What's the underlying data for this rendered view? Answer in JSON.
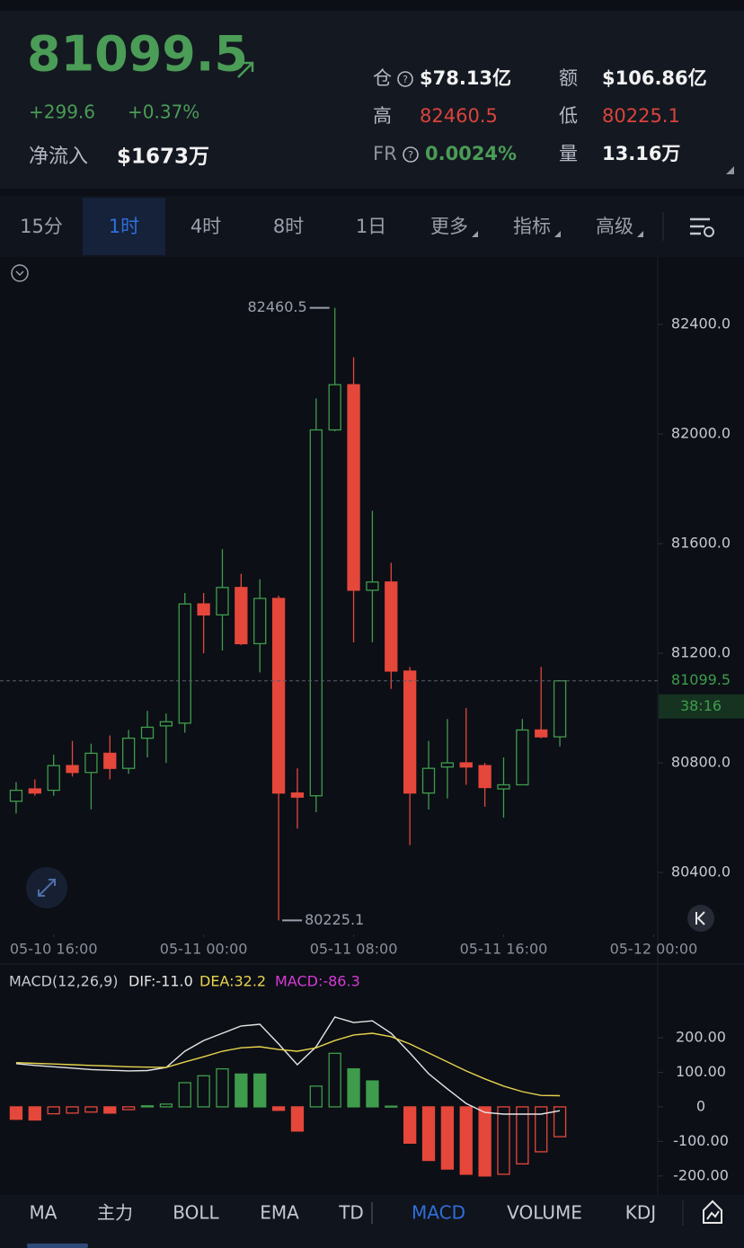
{
  "header": {
    "price": "81099.5",
    "change": "+299.6",
    "change_pct": "+0.37%",
    "net_inflow_label": "净流入",
    "net_inflow": "$1673万",
    "stats": [
      {
        "label": "仓",
        "value": "$78.13亿"
      },
      {
        "label": "额",
        "value": "$106.86亿"
      },
      {
        "label": "高",
        "value": "82460.5"
      },
      {
        "label": "低",
        "value": "80225.1"
      },
      {
        "label": "FR",
        "value": "0.0024%"
      },
      {
        "label": "量",
        "value": "13.16万"
      }
    ]
  },
  "interval_tabs": [
    "15分",
    "1时",
    "4时",
    "8时",
    "1日",
    "更多",
    "指标",
    "高级"
  ],
  "indicator_tabs": [
    "MA",
    "主力",
    "BOLL",
    "EMA",
    "TD",
    "MACD",
    "VOLUME",
    "KDJ"
  ],
  "chart_data": [
    {
      "type": "candlestick",
      "up_color": "#3f9c4c",
      "down_color": "#e5473b",
      "open": [
        80660,
        80705,
        80700,
        80790,
        80765,
        80835,
        80780,
        80890,
        80935,
        80945,
        81380,
        81340,
        81440,
        81235,
        81400,
        80690,
        80680,
        82015,
        82180,
        81430,
        81460,
        81135,
        80690,
        80785,
        80800,
        80790,
        80705,
        80720,
        80920,
        80895
      ],
      "high": [
        80730,
        80740,
        80830,
        80880,
        80870,
        80900,
        80920,
        80990,
        80980,
        81420,
        81420,
        81580,
        81490,
        81470,
        81410,
        80780,
        82130,
        82460.5,
        82280,
        81720,
        81530,
        81150,
        80880,
        80960,
        81000,
        80800,
        80820,
        80960,
        81150,
        81100
      ],
      "low": [
        80615,
        80680,
        80680,
        80750,
        80630,
        80740,
        80760,
        80820,
        80800,
        80910,
        81200,
        81210,
        81230,
        81130,
        80225.1,
        80560,
        80620,
        82010,
        81240,
        81240,
        81070,
        80500,
        80630,
        80670,
        80720,
        80640,
        80600,
        80720,
        80890,
        80860
      ],
      "close": [
        80700,
        80690,
        80790,
        80765,
        80835,
        80780,
        80890,
        80930,
        80950,
        81380,
        81340,
        81440,
        81235,
        81400,
        80690,
        80675,
        82015,
        82180,
        81430,
        81460,
        81135,
        80690,
        80780,
        80800,
        80785,
        80710,
        80720,
        80920,
        80895,
        81099.5
      ],
      "xlim": [
        -0.86,
        34.22
      ],
      "xticks": [
        {
          "value": 2,
          "label": "05-10 16:00"
        },
        {
          "value": 10,
          "label": "05-11 00:00"
        },
        {
          "value": 18,
          "label": "05-11 08:00"
        },
        {
          "value": 26,
          "label": "05-11 16:00"
        },
        {
          "value": 34,
          "label": "05-12 00:00"
        }
      ],
      "ylim": [
        80174,
        82633
      ],
      "yticks": [
        {
          "value": 80400,
          "label": "80400.0"
        },
        {
          "value": 80800,
          "label": "80800.0"
        },
        {
          "value": 81200,
          "label": "81200.0"
        },
        {
          "value": 81600,
          "label": "81600.0"
        },
        {
          "value": 82000,
          "label": "82000.0"
        },
        {
          "value": 82400,
          "label": "82400.0"
        }
      ],
      "annotations": [
        "82460.5",
        "80225.1"
      ],
      "price_tag": "81099.5",
      "countdown": "38:16"
    },
    {
      "type": "macd",
      "title": "MACD(12,26,9)",
      "ylim": [
        -242,
        330
      ],
      "yticks": [
        {
          "value": -200,
          "label": "-200.00"
        },
        {
          "value": -100,
          "label": "-100.00"
        },
        0,
        {
          "value": 100,
          "label": "100.00"
        },
        {
          "value": 200,
          "label": "200.00"
        }
      ],
      "series": [
        {
          "name": "DIF:-11.0",
          "color": "#e6e6e6",
          "kind": "line",
          "values": [
            125,
            120,
            116,
            112,
            108,
            106,
            104,
            105,
            114,
            161,
            192,
            213,
            234,
            239,
            182,
            122,
            174,
            260,
            244,
            249,
            213,
            156,
            96,
            52,
            10,
            -16,
            -21,
            -21,
            -21,
            -11.0
          ]
        },
        {
          "name": "DEA:32.2",
          "color": "#e8d44d",
          "kind": "line",
          "values": [
            128,
            126,
            124,
            122,
            120,
            118,
            116,
            115,
            114,
            130,
            145,
            161,
            171,
            174,
            166,
            161,
            171,
            192,
            208,
            213,
            203,
            182,
            156,
            130,
            104,
            81,
            60,
            44,
            33,
            32.2
          ]
        },
        {
          "name": "MACD:-86.3",
          "color": "#d63ad6",
          "kind": "histogram",
          "values": [
            -36,
            -38,
            -20,
            -18,
            -15,
            -18,
            -8,
            3,
            8,
            70,
            90,
            110,
            95,
            95,
            -10,
            -70,
            60,
            155,
            110,
            75,
            2,
            -105,
            -155,
            -180,
            -195,
            -200,
            -195,
            -165,
            -130,
            -86.3
          ]
        }
      ]
    }
  ]
}
